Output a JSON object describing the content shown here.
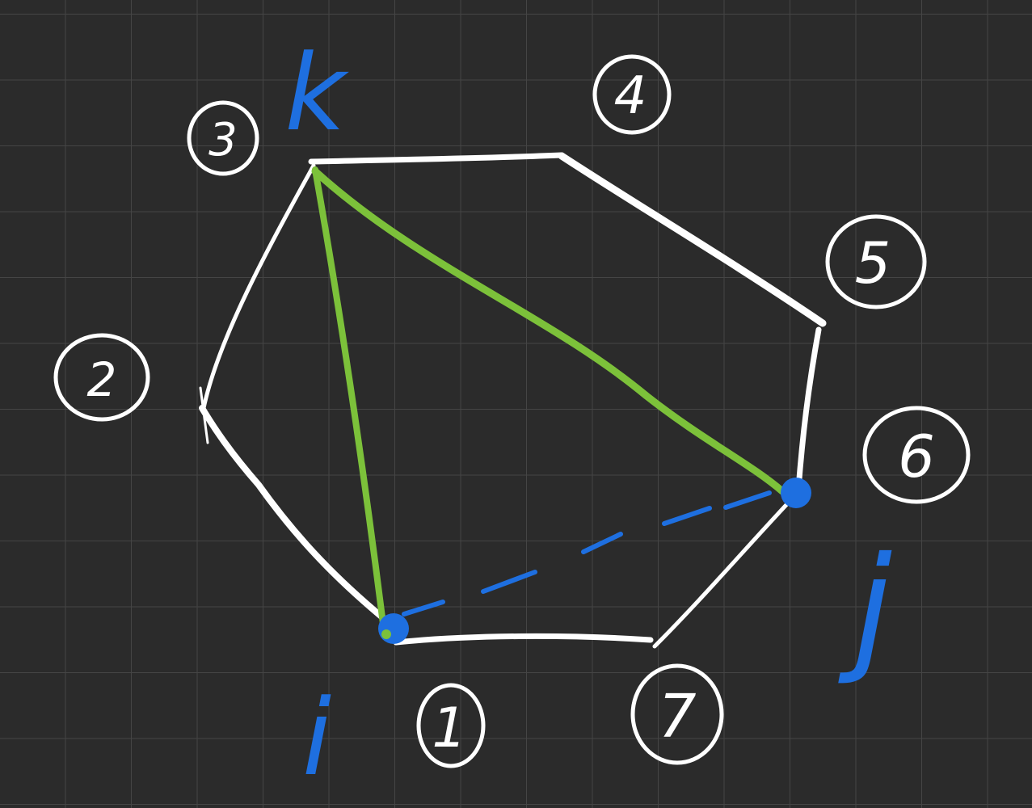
{
  "canvas": {
    "background": "#2b2b2b",
    "grid_color": "#4a4a4a",
    "ink_white": "#ffffff",
    "ink_green": "#7cc13a",
    "ink_blue": "#1e6fe0"
  },
  "vertex_labels": {
    "v1": "1",
    "v2": "2",
    "v3": "3",
    "v4": "4",
    "v5": "5",
    "v6": "6",
    "v7": "7"
  },
  "variable_labels": {
    "k": "k",
    "i": "i",
    "j": "j"
  }
}
